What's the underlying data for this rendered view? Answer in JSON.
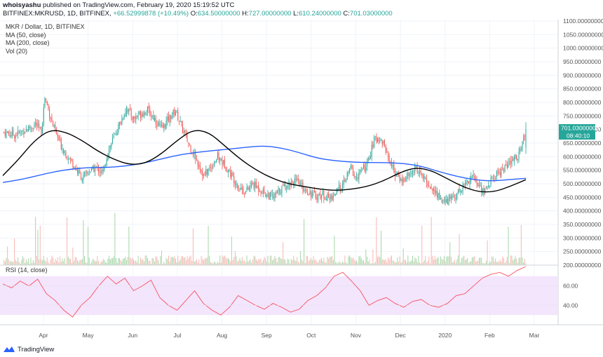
{
  "header": {
    "author": "whoisyashu",
    "published": "published on TradingView.com, February 19, 2020 15:19:52 UTC",
    "symbol": "BITFINEX:MKRUSD, 1D, BITFINEX",
    "change": "+66.52999878 (+10.49%)",
    "o_label": "O:",
    "o_value": "634.50000000",
    "h_label": "H:",
    "h_value": "727.00000000",
    "l_label": "L:",
    "l_value": "610.24000000",
    "c_label": "C:",
    "c_value": "701.03000000"
  },
  "legend": {
    "title": "MKR / Dollar, 1D, BITFINEX",
    "ma50": "MA (50, close)",
    "ma200": "MA (200, close)",
    "vol": "Vol (20)"
  },
  "footer": {
    "brand": "TradingView"
  },
  "colors": {
    "up": "#26a69a",
    "down": "#ef5350",
    "ma50": "#000000",
    "ma200": "#2962ff",
    "rsi": "#f7525f",
    "rsi_band": "#f3e5fc",
    "vol_up": "#a5d6a7",
    "vol_down": "#f5b7b1"
  },
  "chart_data": [
    {
      "type": "candlestick",
      "title": "MKR / Dollar, 1D, BITFINEX",
      "x_ticks": [
        "Apr",
        "May",
        "Jun",
        "Jul",
        "Aug",
        "Sep",
        "Oct",
        "Nov",
        "Dec",
        "2020",
        "Feb",
        "Mar"
      ],
      "y_ticks": [
        "1100.00000000",
        "1050.00000000",
        "1000.00000000",
        "950.00000000",
        "900.00000000",
        "850.00000000",
        "800.00000000",
        "750.00000000",
        "700.00000000",
        "650.00000000",
        "600.00000000",
        "550.00000000",
        "500.00000000",
        "450.00000000",
        "400.00000000",
        "350.00000000",
        "300.00000000",
        "250.00000000",
        "200.00000000"
      ],
      "ylim": [
        200,
        1100
      ],
      "last_price": "701.03000000",
      "countdown": "08:40:10",
      "price_path": [
        [
          0,
          690
        ],
        [
          10,
          680
        ],
        [
          20,
          700
        ],
        [
          28,
          720
        ],
        [
          33,
          690
        ],
        [
          36,
          820
        ],
        [
          40,
          760
        ],
        [
          44,
          700
        ],
        [
          50,
          640
        ],
        [
          56,
          600
        ],
        [
          62,
          560
        ],
        [
          68,
          520
        ],
        [
          74,
          545
        ],
        [
          80,
          560
        ],
        [
          86,
          540
        ],
        [
          90,
          620
        ],
        [
          96,
          680
        ],
        [
          100,
          720
        ],
        [
          106,
          780
        ],
        [
          112,
          740
        ],
        [
          118,
          760
        ],
        [
          124,
          770
        ],
        [
          130,
          740
        ],
        [
          136,
          700
        ],
        [
          142,
          740
        ],
        [
          148,
          770
        ],
        [
          154,
          700
        ],
        [
          160,
          640
        ],
        [
          166,
          590
        ],
        [
          172,
          530
        ],
        [
          178,
          560
        ],
        [
          184,
          600
        ],
        [
          190,
          570
        ],
        [
          196,
          530
        ],
        [
          202,
          490
        ],
        [
          208,
          470
        ],
        [
          214,
          500
        ],
        [
          220,
          480
        ],
        [
          226,
          460
        ],
        [
          232,
          450
        ],
        [
          238,
          480
        ],
        [
          244,
          500
        ],
        [
          250,
          510
        ],
        [
          256,
          490
        ],
        [
          262,
          470
        ],
        [
          268,
          455
        ],
        [
          274,
          460
        ],
        [
          280,
          445
        ],
        [
          286,
          470
        ],
        [
          292,
          500
        ],
        [
          298,
          560
        ],
        [
          302,
          520
        ],
        [
          306,
          540
        ],
        [
          312,
          570
        ],
        [
          318,
          660
        ],
        [
          322,
          670
        ],
        [
          326,
          650
        ],
        [
          330,
          600
        ],
        [
          336,
          540
        ],
        [
          342,
          510
        ],
        [
          348,
          530
        ],
        [
          354,
          560
        ],
        [
          360,
          520
        ],
        [
          366,
          490
        ],
        [
          372,
          460
        ],
        [
          378,
          430
        ],
        [
          384,
          445
        ],
        [
          390,
          470
        ],
        [
          396,
          500
        ],
        [
          402,
          530
        ],
        [
          408,
          490
        ],
        [
          412,
          470
        ],
        [
          418,
          510
        ],
        [
          424,
          540
        ],
        [
          430,
          560
        ],
        [
          436,
          580
        ],
        [
          442,
          610
        ],
        [
          446,
          660
        ],
        [
          448,
          701
        ]
      ],
      "series": [
        {
          "name": "MA (50, close)",
          "y": [
            530,
            590,
            660,
            700,
            690,
            660,
            620,
            590,
            570,
            575,
            610,
            660,
            700,
            690,
            640,
            590,
            550,
            520,
            500,
            490,
            480,
            475,
            480,
            490,
            510,
            540,
            560,
            550,
            520,
            490,
            470,
            470,
            490,
            515
          ]
        },
        {
          "name": "MA (200, close)",
          "y": [
            505,
            515,
            530,
            545,
            555,
            560,
            560,
            565,
            575,
            590,
            605,
            615,
            622,
            628,
            635,
            640,
            632,
            615,
            595,
            585,
            580,
            578,
            578,
            575,
            565,
            545,
            528,
            515,
            510,
            515,
            520
          ]
        }
      ]
    },
    {
      "type": "bar",
      "title": "Vol (20)"
    },
    {
      "type": "line",
      "title": "RSI (14, close)",
      "y_ticks": [
        "60.00",
        "40.00"
      ],
      "ylim": [
        20,
        80
      ],
      "band": [
        30,
        70
      ],
      "values": [
        62,
        58,
        65,
        60,
        67,
        52,
        45,
        35,
        28,
        40,
        48,
        60,
        70,
        62,
        68,
        55,
        60,
        66,
        48,
        40,
        35,
        45,
        55,
        42,
        35,
        30,
        38,
        50,
        45,
        40,
        36,
        42,
        38,
        33,
        36,
        45,
        50,
        58,
        70,
        74,
        65,
        55,
        40,
        45,
        48,
        42,
        38,
        44,
        46,
        40,
        38,
        42,
        50,
        52,
        60,
        68,
        72,
        74,
        70,
        76,
        80
      ]
    }
  ]
}
